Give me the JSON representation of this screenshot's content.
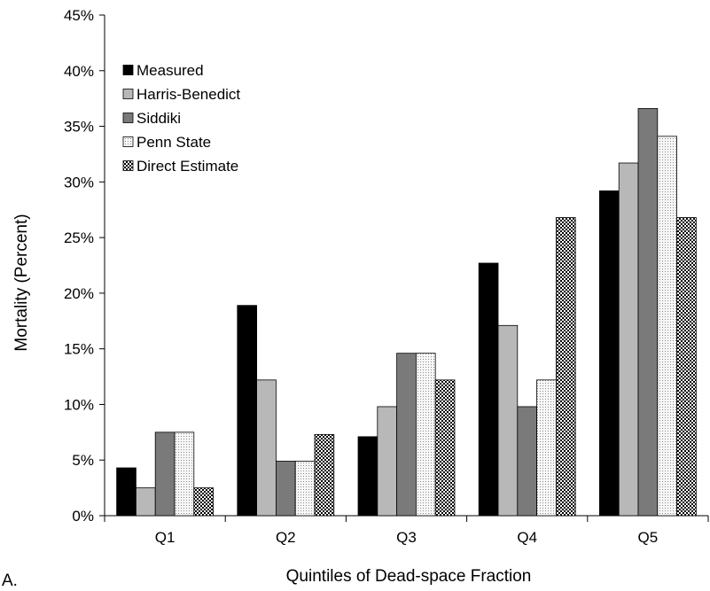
{
  "panel_label": "A.",
  "chart_data": {
    "type": "bar",
    "title": "",
    "xlabel": "Quintiles of Dead-space Fraction",
    "ylabel": "Mortality (Percent)",
    "ylim": [
      0,
      45
    ],
    "ytick_step": 5,
    "ytick_suffix": "%",
    "grid": false,
    "legend_position": "top-left",
    "categories": [
      "Q1",
      "Q2",
      "Q3",
      "Q4",
      "Q5"
    ],
    "series": [
      {
        "name": "Measured",
        "style": "solid",
        "color": "#000000",
        "values": [
          4.3,
          18.9,
          7.1,
          22.7,
          29.2
        ]
      },
      {
        "name": "Harris-Benedict",
        "style": "solid",
        "color": "#b8b8b8",
        "values": [
          2.5,
          12.2,
          9.8,
          17.1,
          31.7
        ]
      },
      {
        "name": "Siddiki",
        "style": "solid",
        "color": "#7a7a7a",
        "values": [
          7.5,
          4.9,
          14.6,
          9.8,
          36.6
        ]
      },
      {
        "name": "Penn State",
        "style": "dotted",
        "color": "#f2f2f2",
        "values": [
          7.5,
          4.9,
          14.6,
          12.2,
          34.1
        ]
      },
      {
        "name": "Direct Estimate",
        "style": "checker",
        "color": "#000000",
        "values": [
          2.5,
          7.3,
          12.2,
          26.8,
          26.8
        ]
      }
    ]
  }
}
